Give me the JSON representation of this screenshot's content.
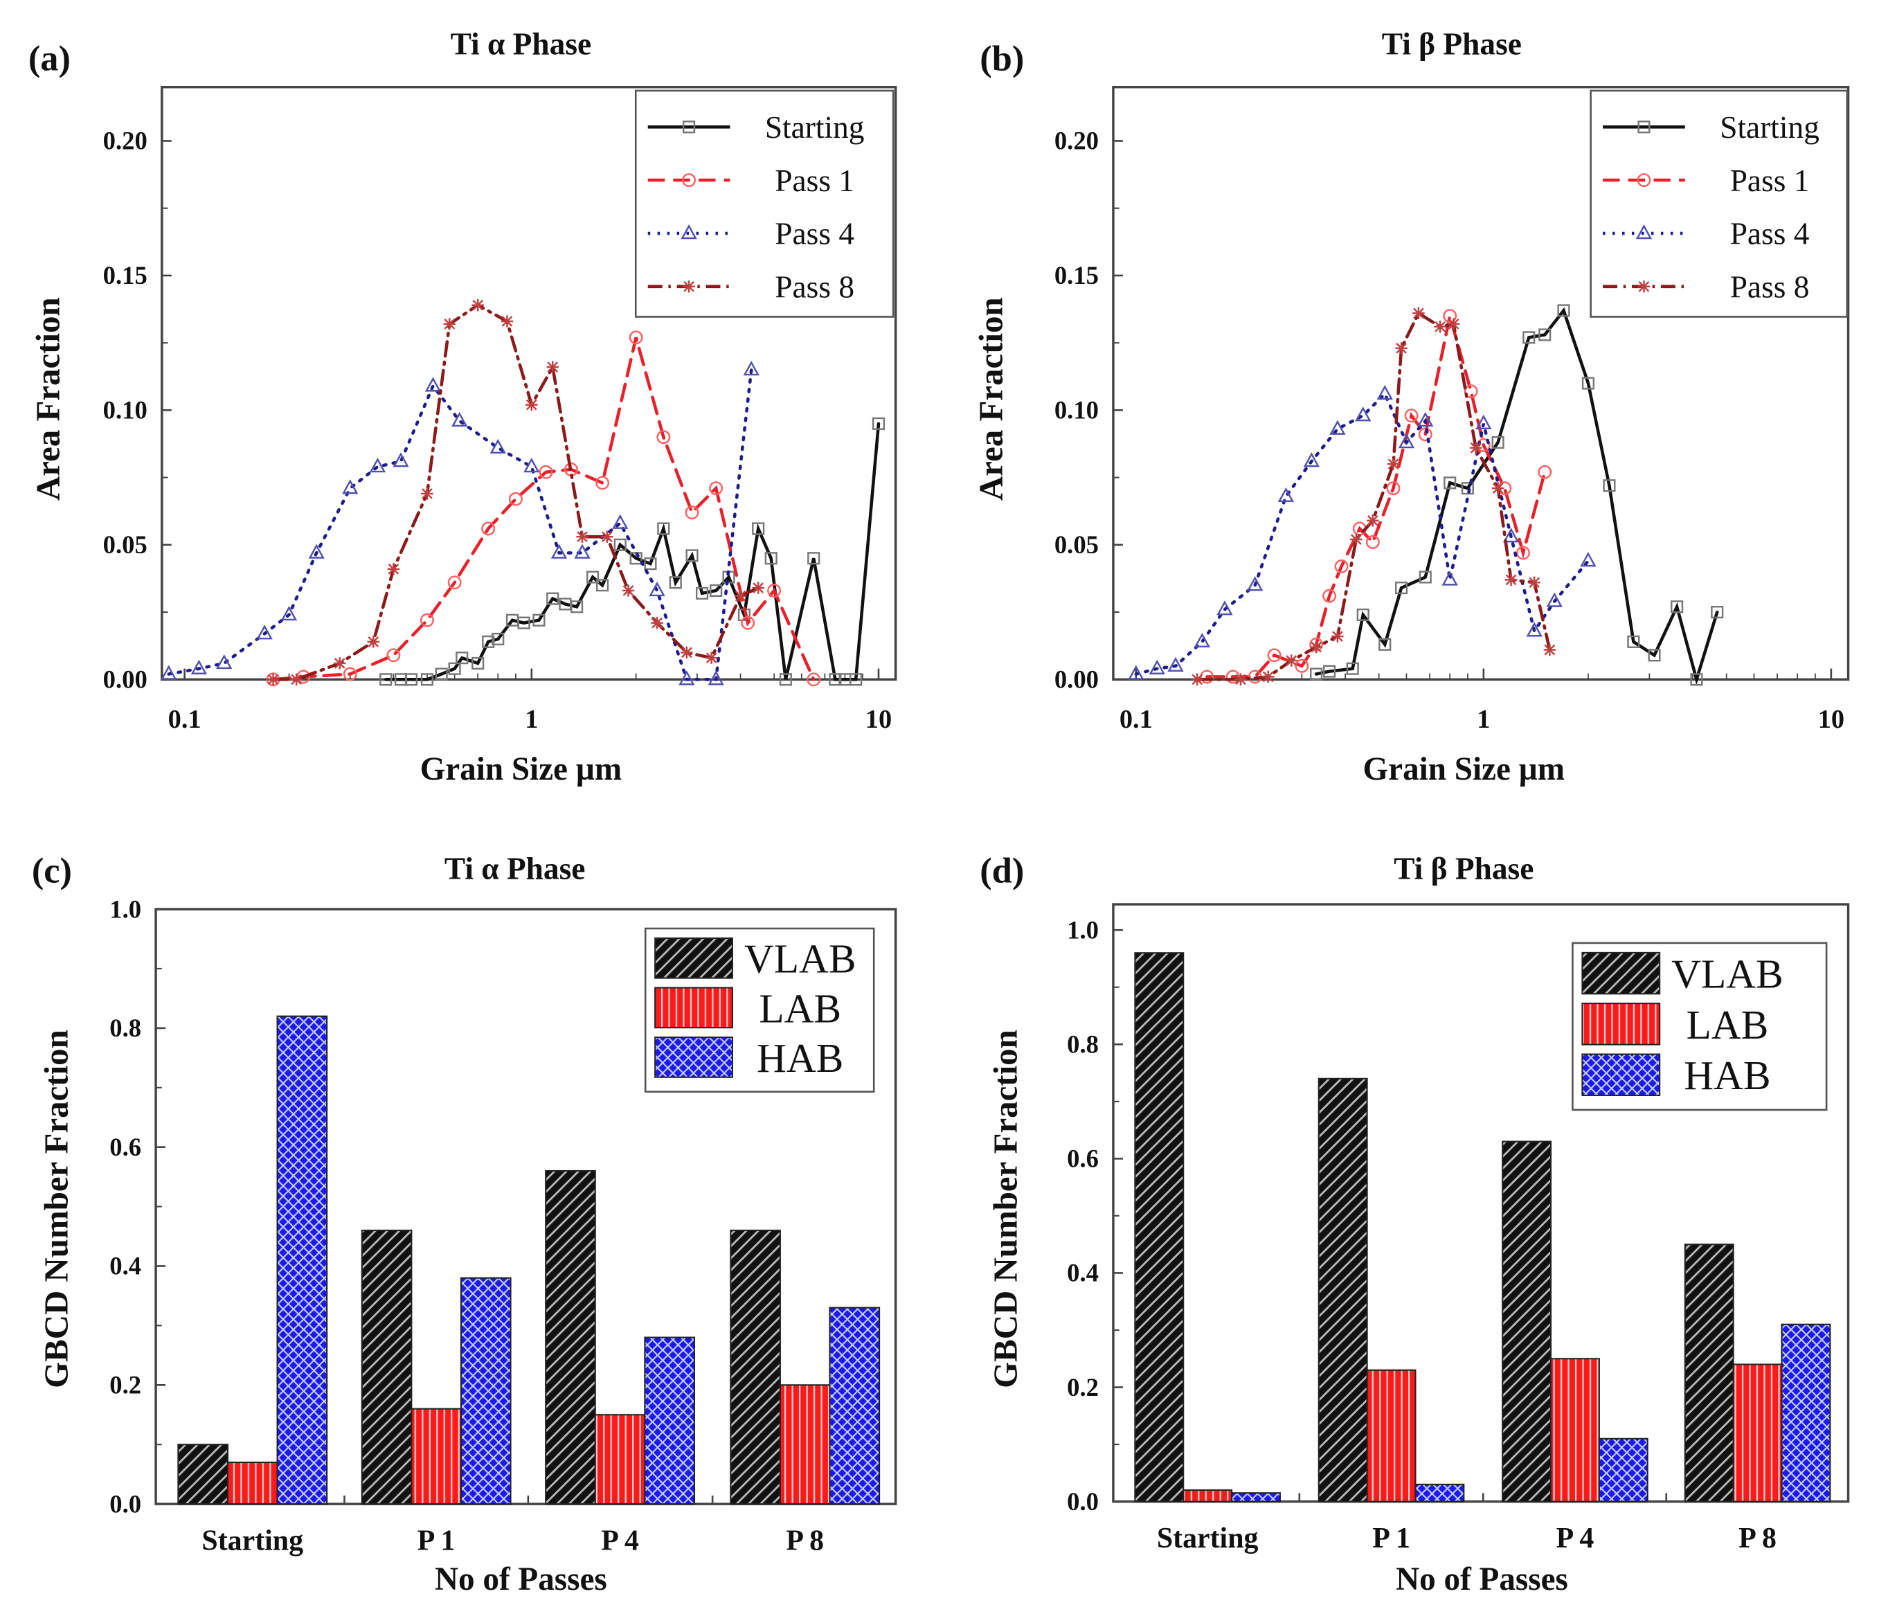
{
  "chart_data": [
    {
      "panel": "(a)",
      "type": "line",
      "title": "Ti α Phase",
      "xlabel": "Grain Size µm",
      "ylabel": "Area Fraction",
      "xscale": "log",
      "xlim": [
        0.086,
        11.2
      ],
      "ylim": [
        0,
        0.22
      ],
      "xticks": [
        "0.1",
        "1",
        "10"
      ],
      "xtick_values": [
        0.1,
        1,
        10
      ],
      "yticks": [
        "0.00",
        "0.05",
        "0.10",
        "0.15",
        "0.20"
      ],
      "ytick_values": [
        0,
        0.05,
        0.1,
        0.15,
        0.2
      ],
      "legend": "top-right",
      "series": [
        {
          "name": "Starting",
          "color": "#111111",
          "marker": "square",
          "style": "solid",
          "x": [
            0.38,
            0.42,
            0.45,
            0.5,
            0.55,
            0.6,
            0.63,
            0.7,
            0.75,
            0.8,
            0.88,
            0.95,
            1.05,
            1.15,
            1.25,
            1.35,
            1.5,
            1.6,
            1.8,
            2.0,
            2.2,
            2.4,
            2.6,
            2.9,
            3.1,
            3.4,
            3.7,
            4.1,
            4.5,
            4.9,
            5.4,
            6.5,
            7.5,
            8.0,
            8.6,
            10.0
          ],
          "y": [
            0,
            0,
            0,
            0,
            0.002,
            0.004,
            0.008,
            0.006,
            0.014,
            0.015,
            0.022,
            0.021,
            0.022,
            0.03,
            0.028,
            0.027,
            0.038,
            0.035,
            0.05,
            0.045,
            0.043,
            0.056,
            0.036,
            0.046,
            0.032,
            0.033,
            0.038,
            0.024,
            0.056,
            0.045,
            0,
            0.045,
            0,
            0,
            0,
            0.095
          ]
        },
        {
          "name": "Pass 1",
          "color": "#e8202a",
          "marker": "circle",
          "style": "dashed",
          "x": [
            0.18,
            0.22,
            0.3,
            0.4,
            0.5,
            0.6,
            0.75,
            0.9,
            1.1,
            1.3,
            1.6,
            2.0,
            2.4,
            2.9,
            3.4,
            4.2,
            5.0,
            6.5
          ],
          "y": [
            0,
            0.001,
            0.002,
            0.009,
            0.022,
            0.036,
            0.056,
            0.067,
            0.077,
            0.078,
            0.073,
            0.127,
            0.09,
            0.062,
            0.071,
            0.021,
            0.033,
            0
          ]
        },
        {
          "name": "Pass 4",
          "color": "#1c1c8c",
          "marker": "triangle",
          "style": "dotted",
          "x": [
            0.09,
            0.11,
            0.13,
            0.17,
            0.2,
            0.24,
            0.3,
            0.36,
            0.42,
            0.52,
            0.62,
            0.8,
            1.0,
            1.2,
            1.4,
            1.8,
            2.3,
            2.8,
            3.4,
            4.3
          ],
          "y": [
            0.002,
            0.004,
            0.006,
            0.017,
            0.024,
            0.047,
            0.071,
            0.079,
            0.081,
            0.109,
            0.096,
            0.086,
            0.079,
            0.047,
            0.047,
            0.058,
            0.033,
            0,
            0,
            0.115
          ]
        },
        {
          "name": "Pass 8",
          "color": "#8b1a1a",
          "marker": "star",
          "style": "dashdot",
          "x": [
            0.18,
            0.21,
            0.28,
            0.35,
            0.4,
            0.5,
            0.58,
            0.7,
            0.85,
            1.0,
            1.15,
            1.4,
            1.65,
            1.9,
            2.3,
            2.8,
            3.3,
            4.0,
            4.5
          ],
          "y": [
            0,
            0,
            0.006,
            0.014,
            0.041,
            0.069,
            0.132,
            0.139,
            0.133,
            0.102,
            0.116,
            0.053,
            0.053,
            0.033,
            0.021,
            0.01,
            0.008,
            0.031,
            0.034
          ]
        }
      ]
    },
    {
      "panel": "(b)",
      "type": "line",
      "title": "Ti β Phase",
      "xlabel": "Grain Size µm",
      "ylabel": "Area Fraction",
      "xscale": "log",
      "xlim": [
        0.086,
        11.2
      ],
      "ylim": [
        0,
        0.22
      ],
      "xticks": [
        "0.1",
        "1",
        "10"
      ],
      "xtick_values": [
        0.1,
        1,
        10
      ],
      "yticks": [
        "0.00",
        "0.05",
        "0.10",
        "0.15",
        "0.20"
      ],
      "ytick_values": [
        0,
        0.05,
        0.1,
        0.15,
        0.2
      ],
      "legend": "top-right",
      "series": [
        {
          "name": "Starting",
          "color": "#111111",
          "marker": "square",
          "style": "solid",
          "x": [
            0.33,
            0.36,
            0.42,
            0.45,
            0.52,
            0.58,
            0.68,
            0.8,
            0.9,
            1.1,
            1.35,
            1.5,
            1.7,
            2.0,
            2.3,
            2.7,
            3.1,
            3.6,
            4.1,
            4.7
          ],
          "y": [
            0.002,
            0.003,
            0.004,
            0.024,
            0.013,
            0.034,
            0.038,
            0.073,
            0.071,
            0.088,
            0.127,
            0.128,
            0.137,
            0.11,
            0.072,
            0.014,
            0.009,
            0.027,
            0,
            0.025
          ]
        },
        {
          "name": "Pass 1",
          "color": "#e8202a",
          "marker": "circle",
          "style": "dashed",
          "x": [
            0.16,
            0.19,
            0.22,
            0.25,
            0.3,
            0.33,
            0.36,
            0.39,
            0.44,
            0.48,
            0.55,
            0.62,
            0.68,
            0.8,
            0.92,
            1.0,
            1.15,
            1.3,
            1.5
          ],
          "y": [
            0.001,
            0.001,
            0.001,
            0.009,
            0.005,
            0.013,
            0.031,
            0.042,
            0.056,
            0.051,
            0.071,
            0.098,
            0.091,
            0.135,
            0.107,
            0.087,
            0.071,
            0.047,
            0.077
          ]
        },
        {
          "name": "Pass 4",
          "color": "#1c1c8c",
          "marker": "triangle",
          "style": "dotted",
          "x": [
            0.1,
            0.115,
            0.13,
            0.155,
            0.18,
            0.22,
            0.27,
            0.32,
            0.38,
            0.45,
            0.52,
            0.6,
            0.68,
            0.8,
            1.0,
            1.2,
            1.4,
            1.6,
            2.0
          ],
          "y": [
            0.002,
            0.004,
            0.005,
            0.014,
            0.026,
            0.035,
            0.068,
            0.081,
            0.093,
            0.098,
            0.106,
            0.088,
            0.096,
            0.037,
            0.095,
            0.053,
            0.018,
            0.029,
            0.044
          ]
        },
        {
          "name": "Pass 8",
          "color": "#8b1a1a",
          "marker": "star",
          "style": "dashdot",
          "x": [
            0.15,
            0.2,
            0.24,
            0.28,
            0.33,
            0.38,
            0.43,
            0.48,
            0.55,
            0.58,
            0.65,
            0.75,
            0.82,
            0.95,
            1.1,
            1.2,
            1.4,
            1.55
          ],
          "y": [
            0,
            0,
            0.001,
            0.007,
            0.012,
            0.016,
            0.052,
            0.059,
            0.08,
            0.123,
            0.136,
            0.131,
            0.132,
            0.086,
            0.071,
            0.037,
            0.036,
            0.011
          ]
        }
      ]
    },
    {
      "panel": "(c)",
      "type": "bar",
      "title": "Ti α Phase",
      "xlabel": "No of Passes",
      "ylabel": "GBCD Number Fraction",
      "categories": [
        "Starting",
        "P 1",
        "P 4",
        "P 8"
      ],
      "ylim": [
        0,
        1.0
      ],
      "yticks": [
        "0.0",
        "0.2",
        "0.4",
        "0.6",
        "0.8",
        "1.0"
      ],
      "ytick_values": [
        0,
        0.2,
        0.4,
        0.6,
        0.8,
        1.0
      ],
      "legend": "top-right",
      "series": [
        {
          "name": "VLAB",
          "color": "#111111",
          "pattern": "diagonal",
          "values": [
            0.1,
            0.46,
            0.56,
            0.46
          ]
        },
        {
          "name": "LAB",
          "color": "#ff1a1a",
          "pattern": "vertical",
          "values": [
            0.07,
            0.16,
            0.15,
            0.2
          ]
        },
        {
          "name": "HAB",
          "color": "#1a1aff",
          "pattern": "crosshatch",
          "values": [
            0.82,
            0.38,
            0.28,
            0.33
          ]
        }
      ]
    },
    {
      "panel": "(d)",
      "type": "bar",
      "title": "Ti β Phase",
      "xlabel": "No of Passes",
      "ylabel": "GBCD Number Fraction",
      "categories": [
        "Starting",
        "P 1",
        "P 4",
        "P 8"
      ],
      "ylim": [
        0,
        1.045
      ],
      "yticks": [
        "0.0",
        "0.2",
        "0.4",
        "0.6",
        "0.8",
        "1.0"
      ],
      "ytick_values": [
        0,
        0.2,
        0.4,
        0.6,
        0.8,
        1.0
      ],
      "legend": "top-right",
      "series": [
        {
          "name": "VLAB",
          "color": "#111111",
          "pattern": "diagonal",
          "values": [
            0.96,
            0.74,
            0.63,
            0.45
          ]
        },
        {
          "name": "LAB",
          "color": "#ff1a1a",
          "pattern": "vertical",
          "values": [
            0.02,
            0.23,
            0.25,
            0.24
          ]
        },
        {
          "name": "HAB",
          "color": "#1a1aff",
          "pattern": "crosshatch",
          "values": [
            0.015,
            0.03,
            0.11,
            0.31
          ]
        }
      ]
    }
  ]
}
